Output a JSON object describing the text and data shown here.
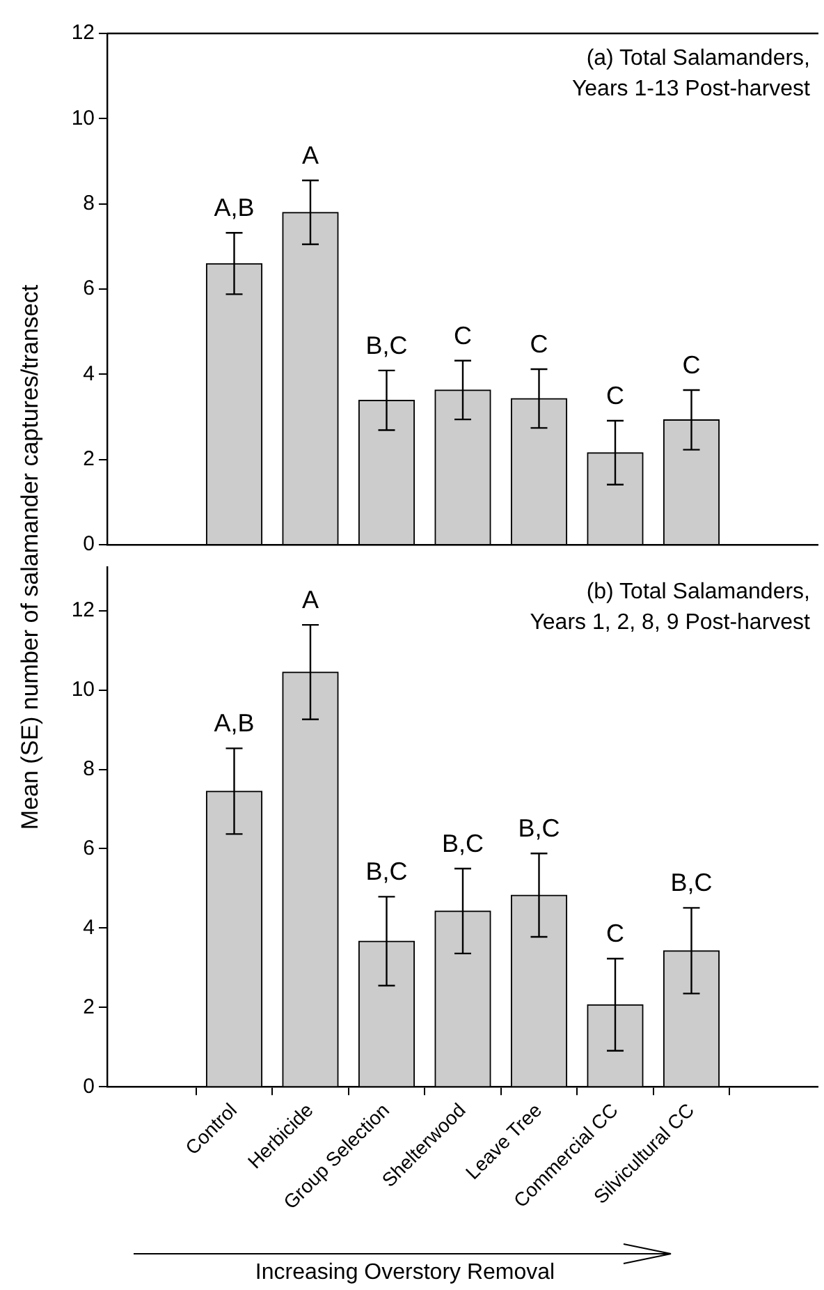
{
  "chart_data": [
    {
      "type": "bar",
      "title": "(a) Total Salamanders,",
      "subtitle": "Years 1-13 Post-harvest",
      "ylabel": "Mean (SE) number of salamander captures/transect",
      "categories": [
        "Control",
        "Herbicide",
        "Group Selection",
        "Shelterwood",
        "Leave Tree",
        "Commercial CC",
        "Silvicultural CC"
      ],
      "values": [
        6.6,
        7.8,
        3.39,
        3.63,
        3.43,
        2.16,
        2.93
      ],
      "errors": [
        0.72,
        0.75,
        0.7,
        0.69,
        0.69,
        0.75,
        0.7
      ],
      "color": "#cccccc",
      "ylim": [
        0,
        12
      ],
      "yticks": [
        0,
        2,
        4,
        6,
        8,
        10,
        12
      ],
      "grid": false,
      "tick_labels": "y",
      "annotations": [
        {
          "text": "A,B",
          "x": "Control",
          "y": 7.32
        },
        {
          "text": "A",
          "x": "Herbicide",
          "y": 8.55
        },
        {
          "text": "B,C",
          "x": "Group Selection",
          "y": 4.09
        },
        {
          "text": "C",
          "x": "Shelterwood",
          "y": 4.32
        },
        {
          "text": "C",
          "x": "Leave Tree",
          "y": 4.12
        },
        {
          "text": "C",
          "x": "Commercial CC",
          "y": 2.91
        },
        {
          "text": "C",
          "x": "Silvicultural CC",
          "y": 3.63
        }
      ]
    },
    {
      "type": "bar",
      "title": "(b) Total Salamanders,",
      "subtitle": "Years 1, 2, 8, 9 Post-harvest",
      "xlabel": "Increasing Overstory Removal",
      "categories": [
        "Control",
        "Herbicide",
        "Group Selection",
        "Shelterwood",
        "Leave Tree",
        "Commercial CC",
        "Silvicultural CC"
      ],
      "values": [
        7.45,
        10.45,
        3.67,
        4.43,
        4.83,
        2.07,
        3.43
      ],
      "errors": [
        1.08,
        1.19,
        1.12,
        1.07,
        1.05,
        1.16,
        1.08
      ],
      "color": "#cccccc",
      "ylim": [
        0,
        13.1
      ],
      "yticks": [
        0,
        2,
        4,
        6,
        8,
        10,
        12
      ],
      "grid": false,
      "annotations": [
        {
          "text": "A,B",
          "x": "Control",
          "y": 8.53
        },
        {
          "text": "A",
          "x": "Herbicide",
          "y": 11.64
        },
        {
          "text": "B,C",
          "x": "Group Selection",
          "y": 4.79
        },
        {
          "text": "B,C",
          "x": "Shelterwood",
          "y": 5.5
        },
        {
          "text": "B,C",
          "x": "Leave Tree",
          "y": 5.88
        },
        {
          "text": "C",
          "x": "Commercial CC",
          "y": 3.23
        },
        {
          "text": "B,C",
          "x": "Silvicultural CC",
          "y": 4.51
        }
      ]
    }
  ]
}
